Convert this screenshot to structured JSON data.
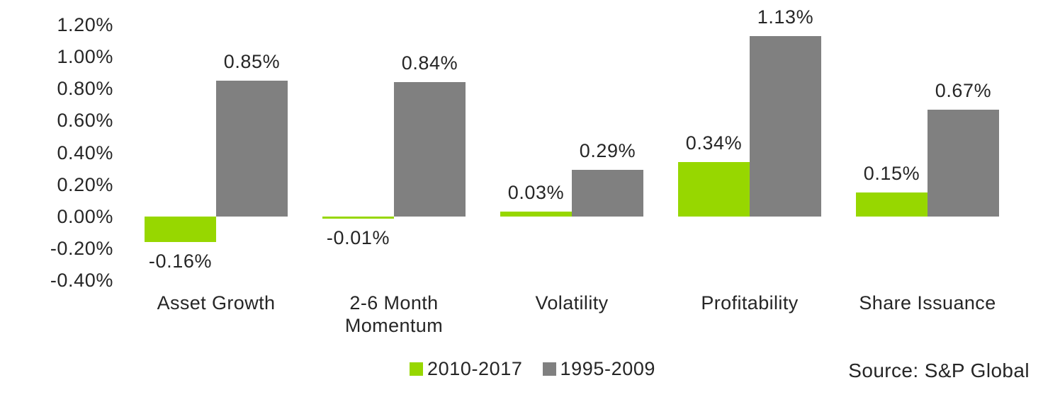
{
  "chart_data": {
    "type": "bar",
    "title": "",
    "categories": [
      "Asset Growth",
      "2-6 Month Momentum",
      "Volatility",
      "Profitability",
      "Share Issuance"
    ],
    "series": [
      {
        "name": "2010-2017",
        "color": "#97D700",
        "values": [
          -0.16,
          -0.01,
          0.03,
          0.34,
          0.15
        ],
        "data_labels": [
          "-0.16%",
          "-0.01%",
          "0.03%",
          "0.34%",
          "0.15%"
        ]
      },
      {
        "name": "1995-2009",
        "color": "#808080",
        "values": [
          0.85,
          0.84,
          0.29,
          1.13,
          0.67
        ],
        "data_labels": [
          "0.85%",
          "0.84%",
          "0.29%",
          "1.13%",
          "0.67%"
        ]
      }
    ],
    "y_axis": {
      "min": -0.4,
      "max": 1.2,
      "step": 0.2,
      "unit": "%",
      "tick_labels": [
        "1.20%",
        "1.00%",
        "0.80%",
        "0.60%",
        "0.40%",
        "0.20%",
        "0.00%",
        "-0.20%",
        "-0.40%"
      ]
    },
    "grid": false,
    "legend": {
      "position": "bottom",
      "entries": [
        "2010-2017",
        "1995-2009"
      ]
    },
    "source": "Source: S&P Global",
    "colors": {
      "text": "#262626",
      "background": "#ffffff"
    }
  }
}
